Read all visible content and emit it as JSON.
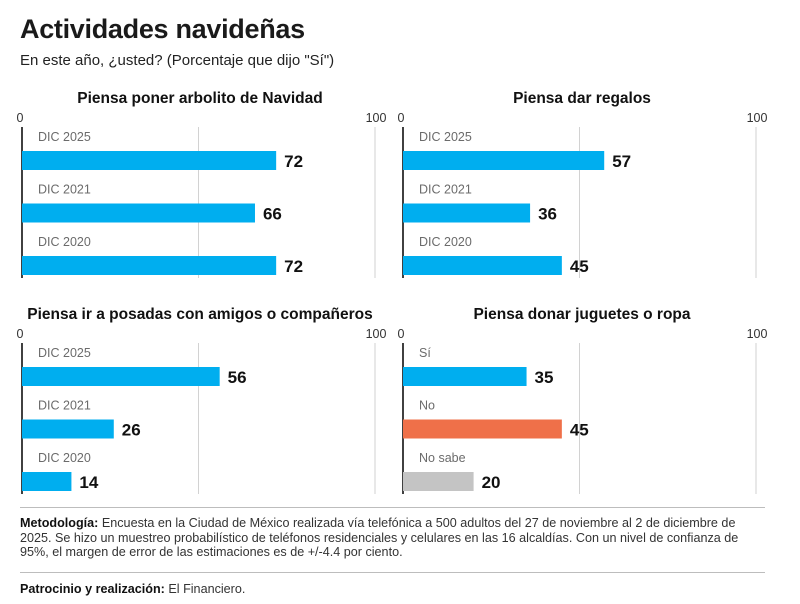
{
  "header": {
    "title": "Actividades navideñas",
    "subtitle": "En este año, ¿usted? (Porcentaje que dijo \"Sí\")"
  },
  "colors": {
    "blue": "#00AEEF",
    "orange": "#EF7049",
    "gray": "#C4C4C4",
    "axis": "#111111",
    "grid": "#D2D2D2",
    "category_text": "#6b6b6b"
  },
  "chart_data": [
    {
      "type": "bar",
      "orientation": "horizontal",
      "title": "Piensa poner arbolito de Navidad",
      "axis": {
        "min_label": "0",
        "max_label": "100"
      },
      "xlim": [
        0,
        100
      ],
      "categories": [
        "DIC 2025",
        "DIC 2021",
        "DIC 2020"
      ],
      "values": [
        72,
        66,
        72
      ],
      "colors": [
        "blue",
        "blue",
        "blue"
      ]
    },
    {
      "type": "bar",
      "orientation": "horizontal",
      "title": "Piensa dar regalos",
      "axis": {
        "min_label": "0",
        "max_label": "100"
      },
      "xlim": [
        0,
        100
      ],
      "categories": [
        "DIC 2025",
        "DIC 2021",
        "DIC 2020"
      ],
      "values": [
        57,
        36,
        45
      ],
      "colors": [
        "blue",
        "blue",
        "blue"
      ]
    },
    {
      "type": "bar",
      "orientation": "horizontal",
      "title": "Piensa ir a posadas con amigos o compañeros",
      "axis": {
        "min_label": "0",
        "max_label": "100"
      },
      "xlim": [
        0,
        100
      ],
      "categories": [
        "DIC 2025",
        "DIC 2021",
        "DIC 2020"
      ],
      "values": [
        56,
        26,
        14
      ],
      "colors": [
        "blue",
        "blue",
        "blue"
      ]
    },
    {
      "type": "bar",
      "orientation": "horizontal",
      "title": "Piensa donar juguetes o ropa",
      "axis": {
        "min_label": "0",
        "max_label": "100"
      },
      "xlim": [
        0,
        100
      ],
      "categories": [
        "Sí",
        "No",
        "No sabe"
      ],
      "values": [
        35,
        45,
        20
      ],
      "colors": [
        "blue",
        "orange",
        "gray"
      ]
    }
  ],
  "footer": {
    "methodology_label": "Metodología:",
    "methodology_text": " Encuesta en la Ciudad de México realizada vía telefónica a 500 adultos del 27 de noviembre al 2 de diciembre de 2025. Se hizo un muestreo probabilístico de teléfonos residenciales y celulares en las 16 alcaldías. Con un nivel de confianza de 95%, el margen de error de las estimaciones es de +/-4.4 por ciento.",
    "credit_label": "Patrocinio y realización:",
    "credit_text": " El Financiero."
  }
}
